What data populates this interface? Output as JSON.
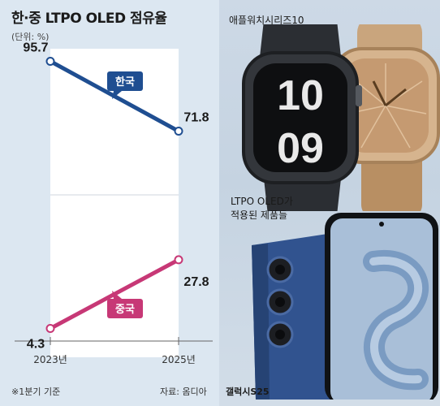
{
  "header": {
    "title": "한·중 LTPO OLED 점유율",
    "unit": "(단위: %)"
  },
  "chart_data": {
    "type": "line",
    "x": [
      "2023년",
      "2025년"
    ],
    "series": [
      {
        "name": "한국",
        "values": [
          95.7,
          71.8
        ],
        "color": "#1f4e91"
      },
      {
        "name": "중국",
        "values": [
          4.3,
          27.8
        ],
        "color": "#c73876"
      }
    ],
    "ylim": [
      0,
      100
    ]
  },
  "footer": {
    "note": "※1분기 기준",
    "source": "자료: 옴디아"
  },
  "products": {
    "watch_label": "애플워치시리즈10",
    "caption_line1": "LTPO OLED가",
    "caption_line2": "적용된 제품들",
    "phone_label": "갤럭시S25"
  }
}
